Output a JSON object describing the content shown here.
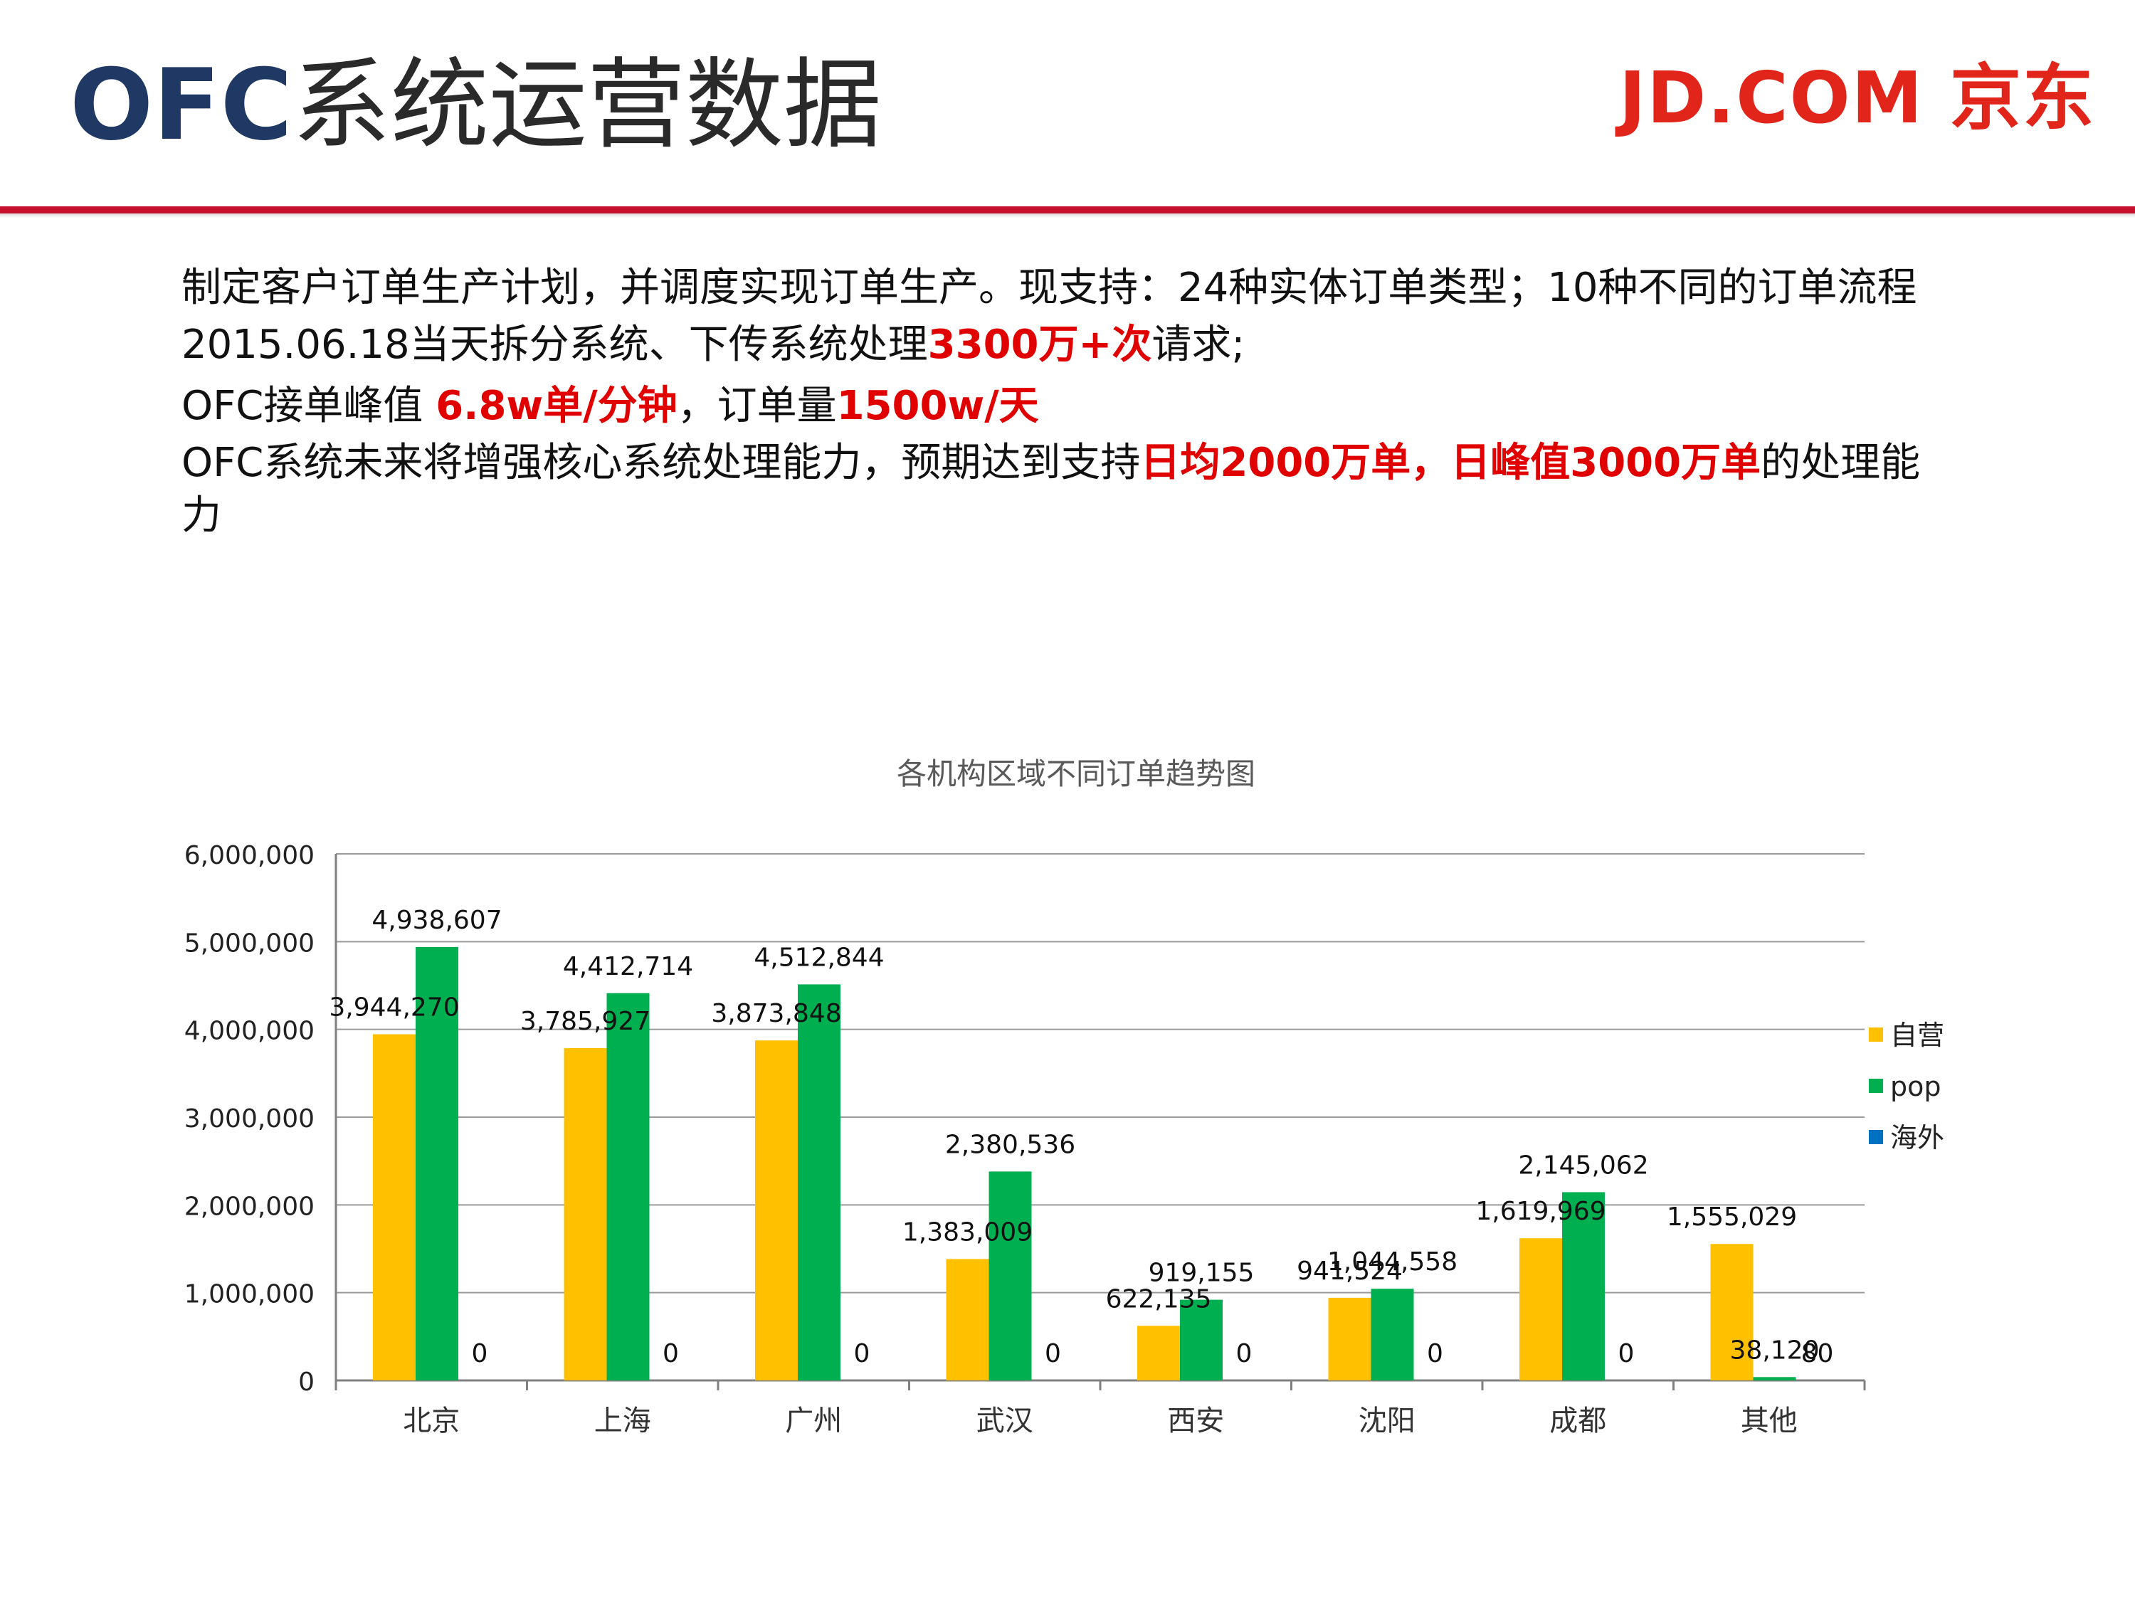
{
  "header": {
    "title_latin": "OFC",
    "title_cjk": "系统运营数据",
    "logo_text": "JD.COM 京东"
  },
  "body": {
    "line1": "制定客户订单生产计划，并调度实现订单生产。现支持：24种实体订单类型；10种不同的订单流程",
    "line2_a": "2015.06.18当天拆分系统、下传系统处理",
    "line2_b": "3300万+次",
    "line2_c": "请求;",
    "line3_a": "OFC接单峰值 ",
    "line3_b": "6.8w单/分钟",
    "line3_c": "，订单量",
    "line3_d": "1500w/天",
    "line4_a": "OFC系统未来将增强核心系统处理能力，预期达到支持",
    "line4_b": "日均2000万单",
    "line4_c": "，",
    "line4_d": "日峰值3000万单",
    "line4_e": "的处理能力"
  },
  "chart_data": {
    "type": "bar",
    "title": "各机构区域不同订单趋势图",
    "categories": [
      "北京",
      "上海",
      "广州",
      "武汉",
      "西安",
      "沈阳",
      "成都",
      "其他"
    ],
    "series": [
      {
        "name": "自营",
        "color": "#ffc000",
        "values": [
          3944270,
          3785927,
          3873848,
          1383009,
          622135,
          941524,
          1619969,
          1555029
        ]
      },
      {
        "name": "pop",
        "color": "#00b050",
        "values": [
          4938607,
          4412714,
          4512844,
          2380536,
          919155,
          1044558,
          2145062,
          38120
        ]
      },
      {
        "name": "海外",
        "color": "#0070c0",
        "values": [
          0,
          0,
          0,
          0,
          0,
          0,
          0,
          80
        ]
      }
    ],
    "ylim": [
      0,
      6000000
    ],
    "yticks": [
      0,
      1000000,
      2000000,
      3000000,
      4000000,
      5000000,
      6000000
    ],
    "ytick_labels": [
      "0",
      "1,000,000",
      "2,000,000",
      "3,000,000",
      "4,000,000",
      "5,000,000",
      "6,000,000"
    ],
    "grid": true,
    "legend_position": "right",
    "data_labels": true
  }
}
